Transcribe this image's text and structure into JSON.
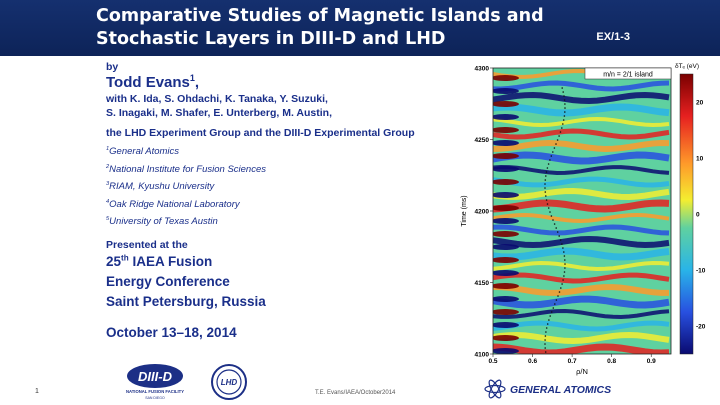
{
  "slide": {
    "title_line1": "Comparative Studies of Magnetic Islands and",
    "title_line2": "Stochastic Layers in DIII-D and LHD",
    "code": "EX/1-3",
    "by": "by",
    "author": "Todd Evans",
    "coauthors_line1": "with K. Ida, S. Ohdachi, K. Tanaka, Y. Suzuki,",
    "coauthors_line2": "S. Inagaki, M. Shafer, E. Unterberg, M. Austin,",
    "group": "the LHD Experiment Group and the DIII-D Experimental Group",
    "affiliations": [
      {
        "num": "1",
        "text": "General Atomics"
      },
      {
        "num": "2",
        "text": "National Institute for Fusion Sciences"
      },
      {
        "num": "3",
        "text": "RIAM, Kyushu University"
      },
      {
        "num": "4",
        "text": "Oak Ridge National Laboratory"
      },
      {
        "num": "5",
        "text": "University of Texas Austin"
      }
    ],
    "presented_at": "Presented at the",
    "conf_num": "25",
    "conf_sup": "th",
    "conf_line1": "IAEA Fusion",
    "conf_line2": "Energy Conference",
    "conf_line3": "Saint Petersburg, Russia",
    "date": "October 13–18, 2014",
    "footer_number": "1",
    "footer_text": "T.E. Evans/IAEA/October2014",
    "logo_diiid": "DIII-D",
    "logo_diiid_sub1": "NATIONAL FUSION FACILITY",
    "logo_diiid_sub2": "SAN DIEGO",
    "logo_lhd": "LHD",
    "logo_ga": "GENERAL ATOMICS"
  },
  "chart_data": {
    "type": "heatmap",
    "annotation": "m/n = 2/1 island",
    "colorbar_label": "δTₑ (eV)",
    "colorbar_ticks": [
      20,
      10,
      0,
      -10,
      -20
    ],
    "colorbar_range": [
      -25,
      25
    ],
    "xlabel": "ρ/N",
    "ylabel": "Time (ms)",
    "x_ticks": [
      0.5,
      0.6,
      0.7,
      0.8,
      0.9
    ],
    "y_ticks": [
      4100,
      4150,
      4200,
      4250,
      4300
    ],
    "xlim": [
      0.5,
      0.95
    ],
    "ylim": [
      4100,
      4300
    ]
  }
}
